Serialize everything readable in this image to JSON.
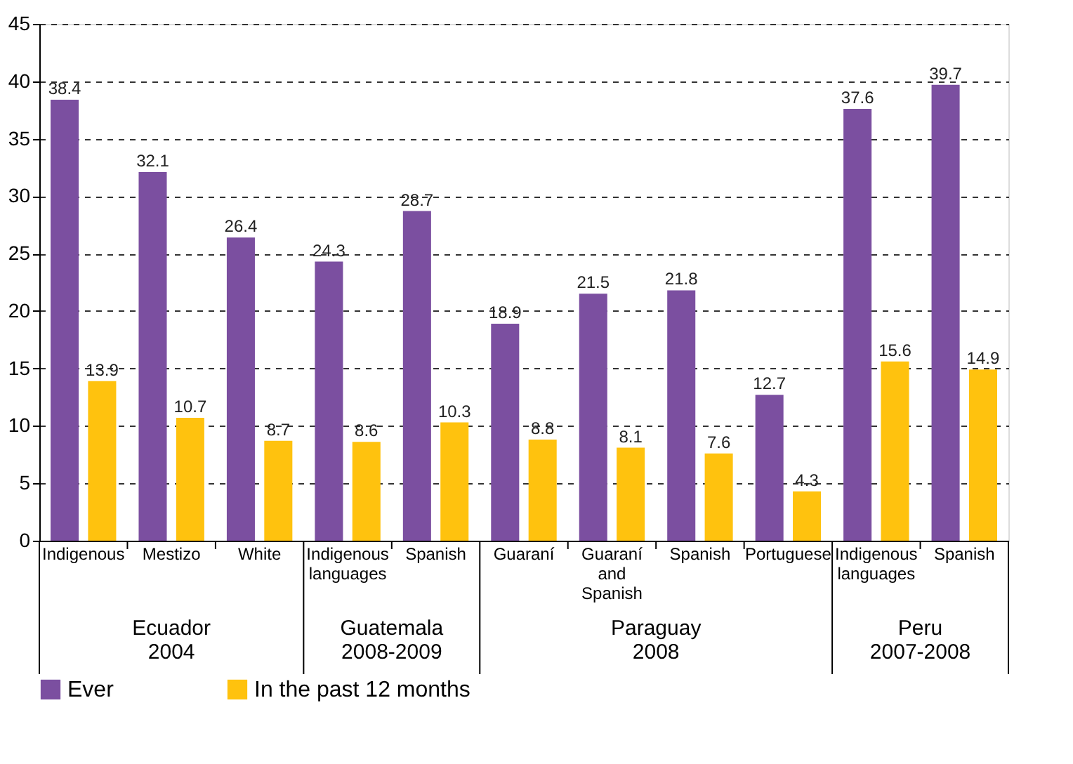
{
  "chart_data": {
    "type": "bar",
    "categories": [
      "Indigenous",
      "Mestizo",
      "White",
      "Indigenous languages",
      "Spanish",
      "Guaraní",
      "Guaraní and Spanish",
      "Spanish",
      "Portuguese",
      "Indigenous languages",
      "Spanish"
    ],
    "series": [
      {
        "name": "Ever",
        "color": "#7b4fa0",
        "values": [
          38.4,
          32.1,
          26.4,
          24.3,
          28.7,
          18.9,
          21.5,
          21.8,
          12.7,
          37.6,
          39.7
        ]
      },
      {
        "name": "In the past 12 months",
        "color": "#ffc20e",
        "values": [
          13.9,
          10.7,
          8.7,
          8.6,
          10.3,
          8.8,
          8.1,
          7.6,
          4.3,
          15.6,
          14.9
        ]
      }
    ],
    "annotations": [
      "Ecuador 2004",
      "Guatemala 2008-2009",
      "Paraguay 2008",
      "Peru 2007-2008"
    ],
    "ylim": [
      0,
      45
    ],
    "yticks": [
      0,
      5,
      10,
      15,
      20,
      25,
      30,
      35,
      40,
      45
    ],
    "grid": "y",
    "legend": "bottom",
    "data_labels": true
  }
}
